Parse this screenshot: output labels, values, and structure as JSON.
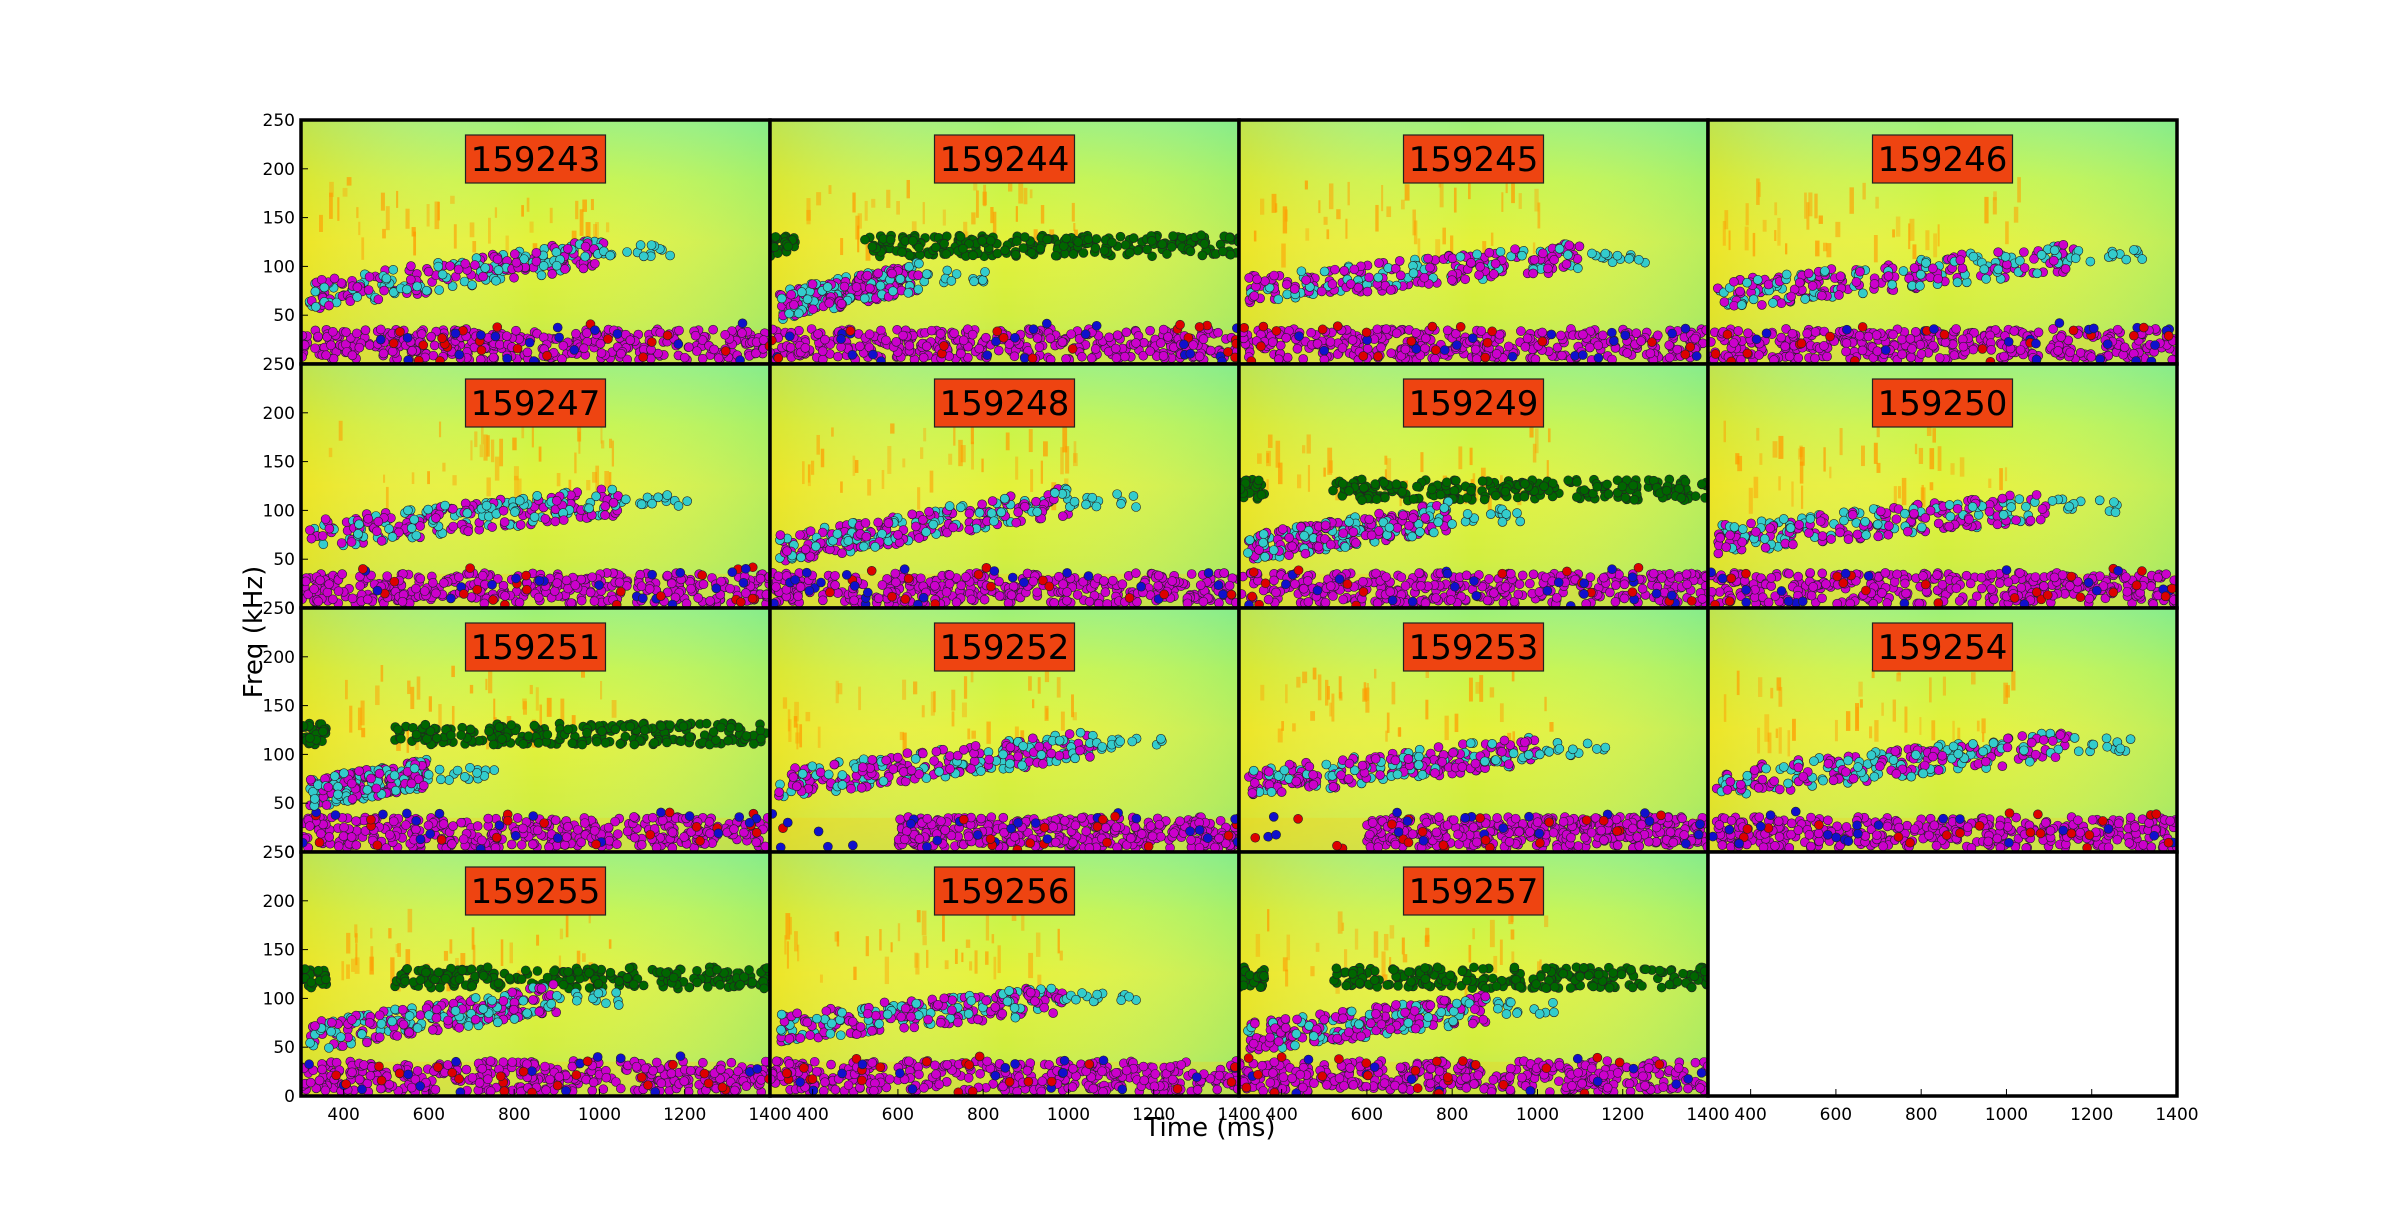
{
  "chart_data": {
    "type": "scatter",
    "layout": "4x4 grid of spectrogram panels with scatter overlay, shared axes",
    "xlabel": "Time (ms)",
    "ylabel": "Freq (kHz)",
    "xlim": [
      300,
      1400
    ],
    "ylim": [
      0,
      250
    ],
    "xticks": [
      "400",
      "600",
      "800",
      "1000",
      "1200",
      "1400"
    ],
    "yticks": [
      "0",
      "50",
      "100",
      "150",
      "200",
      "250"
    ],
    "background": "spectrogram (green/yellow with orange energy bands)",
    "series_colors": {
      "low_band": "#cc00cc",
      "mid_band_sweep": "#33cccc",
      "high_band": "#006600",
      "outliers_red": "#dd0000",
      "outliers_blue": "#1010cc"
    },
    "label_box_color": "#ee4411",
    "panels": [
      {
        "label": "159243",
        "high_band": false,
        "sweep": [
          320,
          1010,
          70,
          115
        ],
        "low_start": 300
      },
      {
        "label": "159244",
        "high_band": true,
        "sweep": [
          320,
          650,
          60,
          90
        ],
        "low_start": 300
      },
      {
        "label": "159245",
        "high_band": false,
        "sweep": [
          320,
          1100,
          75,
          110
        ],
        "low_start": 300
      },
      {
        "label": "159246",
        "high_band": false,
        "sweep": [
          320,
          1160,
          70,
          110
        ],
        "low_start": 300
      },
      {
        "label": "159247",
        "high_band": false,
        "sweep": [
          320,
          1060,
          75,
          110
        ],
        "low_start": 300
      },
      {
        "label": "159248",
        "high_band": false,
        "sweep": [
          320,
          1000,
          60,
          110
        ],
        "low_start": 300
      },
      {
        "label": "159249",
        "high_band": true,
        "sweep": [
          320,
          800,
          60,
          95
        ],
        "low_start": 300
      },
      {
        "label": "159250",
        "high_band": false,
        "sweep": [
          320,
          1100,
          70,
          105
        ],
        "low_start": 300
      },
      {
        "label": "159251",
        "high_band": true,
        "sweep": [
          320,
          600,
          60,
          80
        ],
        "low_start": 300
      },
      {
        "label": "159252",
        "high_band": false,
        "sweep": [
          320,
          1060,
          70,
          110
        ],
        "low_start": 600
      },
      {
        "label": "159253",
        "high_band": false,
        "sweep": [
          320,
          1000,
          70,
          105
        ],
        "low_start": 600
      },
      {
        "label": "159254",
        "high_band": false,
        "sweep": [
          320,
          1150,
          70,
          110
        ],
        "low_start": 320
      },
      {
        "label": "159255",
        "high_band": true,
        "sweep": [
          320,
          900,
          60,
          100
        ],
        "low_start": 300
      },
      {
        "label": "159256",
        "high_band": false,
        "sweep": [
          320,
          1000,
          70,
          100
        ],
        "low_start": 300
      },
      {
        "label": "159257",
        "high_band": true,
        "sweep": [
          320,
          880,
          60,
          90
        ],
        "low_start": 300
      }
    ]
  }
}
